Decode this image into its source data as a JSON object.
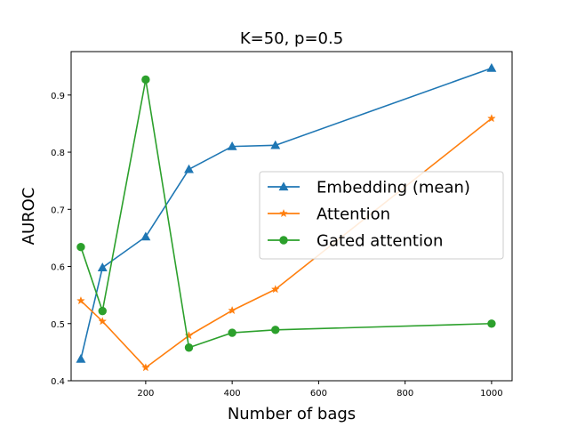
{
  "chart_data": {
    "type": "line",
    "title": "K=50, p=0.5",
    "xlabel": "Number of bags",
    "ylabel": "AUROC",
    "xlim": [
      27.5,
      1047.5
    ],
    "ylim": [
      0.4,
      0.976
    ],
    "xticks": [
      200,
      400,
      600,
      800,
      1000
    ],
    "xtick_labels": [
      "200",
      "400",
      "600",
      "800",
      "1000"
    ],
    "yticks": [
      0.4,
      0.5,
      0.6,
      0.7,
      0.8,
      0.9
    ],
    "ytick_labels": [
      "0.4",
      "0.5",
      "0.6",
      "0.7",
      "0.8",
      "0.9"
    ],
    "grid": false,
    "legend_position": "center-right",
    "x": [
      50,
      100,
      200,
      300,
      400,
      500,
      1000
    ],
    "series": [
      {
        "name": "Embedding (mean)",
        "color": "#1f77b4",
        "marker": "triangle",
        "values": [
          0.438,
          0.598,
          0.652,
          0.77,
          0.81,
          0.812,
          0.947
        ]
      },
      {
        "name": "Attention",
        "color": "#ff7f0e",
        "marker": "star",
        "values": [
          0.54,
          0.504,
          0.423,
          0.479,
          0.523,
          0.56,
          0.859
        ]
      },
      {
        "name": "Gated attention",
        "color": "#2ca02c",
        "marker": "circle",
        "values": [
          0.634,
          0.522,
          0.927,
          0.458,
          0.484,
          0.489,
          0.5
        ]
      }
    ]
  }
}
